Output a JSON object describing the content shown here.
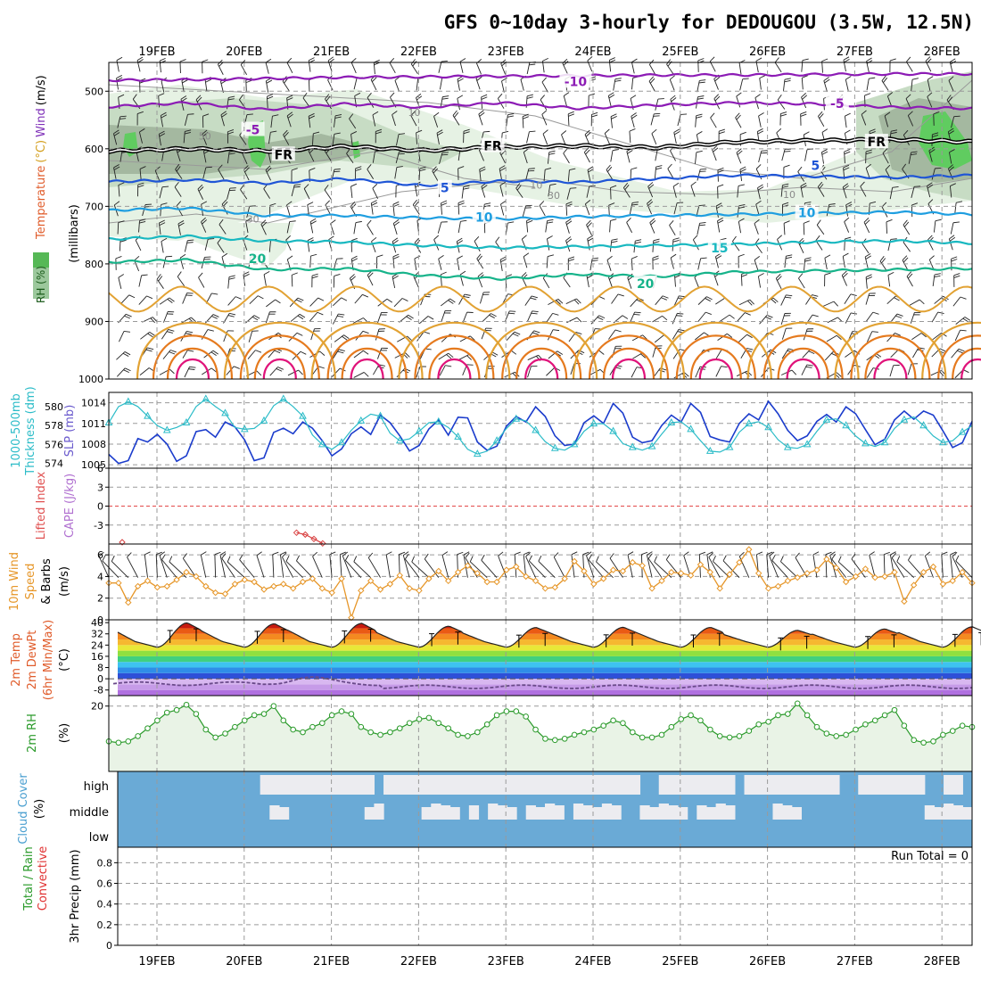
{
  "title": "GFS 0~10day 3-hourly for DEDOUGOU (3.5W, 12.5N)",
  "dates": [
    "19FEB",
    "20FEB",
    "21FEB",
    "22FEB",
    "23FEB",
    "24FEB",
    "25FEB",
    "26FEB",
    "27FEB",
    "28FEB"
  ],
  "colors": {
    "rh_light": "#e6f2e4",
    "rh_mid": "#c7dcc4",
    "rh_dark": "#a4b8a0",
    "rh_green": "#60cc60",
    "temp_purple": "#8c1bb5",
    "temp_blue": "#1f55d6",
    "temp_lblue": "#1e9ee0",
    "temp_cyan": "#18b8c0",
    "temp_teal": "#16b38a",
    "temp_orange1": "#e2a233",
    "temp_orange2": "#e57a1e",
    "temp_magenta": "#e0137a",
    "slp": "#1b3ccc",
    "thickness": "#2cbcc8",
    "wind10": "#e69628",
    "rh2m": "#2a9a2a",
    "rh2m_fill": "#e9f3e6",
    "cloud": "#6aaad6",
    "cloud_clear": "#ececf0"
  },
  "chart_data": [
    {
      "id": "upper_air",
      "type": "contour",
      "ylabel_parts": [
        "RH (%)",
        "Temperature",
        "(°C)",
        "Wind",
        "(m/s)"
      ],
      "yunit": "(millibars)",
      "y_ticks": [
        "500",
        "600",
        "700",
        "800",
        "900",
        "1000"
      ],
      "y_values": [
        500,
        600,
        700,
        800,
        900,
        1000
      ],
      "ylim": [
        450,
        1000
      ],
      "contours": [
        {
          "label": "-10",
          "color_key": "temp_purple",
          "pressure": [
            481,
            480,
            478,
            476,
            475,
            474,
            473,
            472,
            472,
            471,
            470,
            470
          ]
        },
        {
          "label": "-5",
          "color_key": "temp_purple",
          "pressure": [
            527,
            520,
            532,
            522,
            528,
            520,
            530,
            524,
            520,
            522,
            528,
            530
          ]
        },
        {
          "label": "FR",
          "color_key": "freezing",
          "pressure": [
            604,
            600,
            604,
            596,
            603,
            597,
            595,
            598,
            588,
            586,
            584,
            588
          ]
        },
        {
          "label": "5",
          "color_key": "temp_blue",
          "pressure": [
            657,
            654,
            660,
            652,
            664,
            656,
            658,
            652,
            646,
            648,
            650,
            646
          ]
        },
        {
          "label": "10",
          "color_key": "temp_lblue",
          "pressure": [
            707,
            703,
            716,
            716,
            720,
            722,
            718,
            716,
            714,
            712,
            710,
            714
          ]
        },
        {
          "label": "15",
          "color_key": "temp_cyan",
          "pressure": [
            757,
            752,
            760,
            762,
            768,
            772,
            770,
            768,
            766,
            762,
            760,
            764
          ]
        },
        {
          "label": "20",
          "color_key": "temp_teal",
          "pressure": [
            797,
            793,
            810,
            808,
            820,
            826,
            818,
            822,
            814,
            812,
            810,
            808
          ]
        }
      ],
      "contour_labels": [
        {
          "text": "-10",
          "x_day": 4.8,
          "pressure": 483
        },
        {
          "text": "-5",
          "x_day": 1.1,
          "pressure": 567
        },
        {
          "text": "-5",
          "x_day": 7.8,
          "pressure": 521
        },
        {
          "text": "FR",
          "x_day": 1.45,
          "pressure": 610
        },
        {
          "text": "FR",
          "x_day": 3.85,
          "pressure": 595
        },
        {
          "text": "FR",
          "x_day": 8.25,
          "pressure": 588
        },
        {
          "text": "5",
          "x_day": 3.3,
          "pressure": 668
        },
        {
          "text": "5",
          "x_day": 7.55,
          "pressure": 629
        },
        {
          "text": "10",
          "x_day": 3.75,
          "pressure": 719
        },
        {
          "text": "10",
          "x_day": 7.45,
          "pressure": 711
        },
        {
          "text": "15",
          "x_day": 6.45,
          "pressure": 772
        },
        {
          "text": "20",
          "x_day": 1.15,
          "pressure": 791
        },
        {
          "text": "20",
          "x_day": 5.6,
          "pressure": 834
        }
      ],
      "gray_labels": [
        {
          "text": "10",
          "x_day": 2.95,
          "pressure": 537
        },
        {
          "text": "50",
          "x_day": 0.55,
          "pressure": 578
        },
        {
          "text": "30",
          "x_day": 4.55,
          "pressure": 681
        },
        {
          "text": "30",
          "x_day": 1.1,
          "pressure": 722
        },
        {
          "text": "10",
          "x_day": 4.35,
          "pressure": 663
        },
        {
          "text": "10",
          "x_day": 7.25,
          "pressure": 679
        }
      ]
    },
    {
      "id": "slp_thickness",
      "type": "line",
      "ylabel_left": [
        "1000-500mb",
        "Thickness (dm)"
      ],
      "ylabel_right": "SLP (mb)",
      "thickness_ticks": [
        "574",
        "576",
        "578",
        "580"
      ],
      "slp_ticks": [
        "1005",
        "1008",
        "1011",
        "1014"
      ],
      "series": [
        {
          "name": "SLP",
          "unit": "mb",
          "ylim": [
            1004.5,
            1015.5
          ],
          "values": [
            1006.5,
            1005.2,
            1005.6,
            1008.8,
            1008.3,
            1009.4,
            1008.0,
            1005.5,
            1006.3,
            1009.8,
            1010.1,
            1009.0,
            1011.2,
            1010.5,
            1008.6,
            1005.6,
            1006.0,
            1009.7,
            1010.3,
            1009.5,
            1011.2,
            1010.3,
            1008.5,
            1006.3,
            1007.3,
            1009.5,
            1010.5,
            1009.4,
            1012.2,
            1011.1,
            1009.2,
            1007.0,
            1007.8,
            1010.2,
            1011.5,
            1009.3,
            1011.9,
            1011.8,
            1008.3,
            1007.1,
            1007.7,
            1010.6,
            1012.0,
            1011.2,
            1013.4,
            1012.0,
            1009.2,
            1007.8,
            1008.0,
            1011.1,
            1012.1,
            1011.0,
            1013.9,
            1012.5,
            1009.0,
            1008.2,
            1008.5,
            1010.7,
            1012.2,
            1011.2,
            1013.9,
            1012.6,
            1009.1,
            1008.6,
            1008.3,
            1011.0,
            1012.4,
            1011.5,
            1014.2,
            1012.4,
            1010.0,
            1008.5,
            1009.2,
            1011.3,
            1012.3,
            1011.2,
            1013.4,
            1012.4,
            1010.1,
            1007.9,
            1008.7,
            1011.5,
            1012.8,
            1011.6,
            1012.8,
            1012.2,
            1009.9,
            1007.5,
            1008.2,
            1011.3
          ]
        },
        {
          "name": "Thickness",
          "unit": "dm",
          "ylim": [
            573.5,
            581.5
          ],
          "values": [
            578.3,
            580.0,
            580.5,
            580.0,
            579.0,
            578.0,
            577.5,
            577.8,
            578.3,
            580.0,
            580.8,
            580.0,
            579.3,
            577.8,
            577.6,
            577.7,
            578.5,
            580.1,
            580.8,
            580.0,
            579.0,
            577.0,
            576.0,
            575.5,
            576.2,
            577.5,
            578.5,
            579.2,
            579.0,
            577.2,
            576.4,
            576.6,
            577.4,
            578.3,
            578.4,
            577.8,
            576.8,
            575.5,
            575.0,
            575.3,
            576.4,
            577.7,
            578.7,
            578.5,
            577.5,
            576.3,
            575.6,
            575.4,
            576.0,
            577.4,
            578.2,
            578.2,
            577.4,
            576.1,
            575.7,
            575.4,
            575.8,
            577.1,
            578.3,
            578.4,
            577.6,
            576.4,
            575.3,
            575.2,
            575.7,
            577.3,
            578.2,
            578.4,
            577.8,
            576.5,
            575.7,
            575.6,
            576.0,
            577.4,
            578.6,
            578.7,
            578.0,
            576.9,
            576.1,
            575.8,
            576.2,
            577.7,
            578.6,
            578.9,
            578.0,
            576.9,
            576.2,
            576.4,
            577.3,
            578.0
          ]
        }
      ]
    },
    {
      "id": "stability",
      "type": "line",
      "ylabel_left": "Lifted Index",
      "ylabel_right": "CAPE (J/kg)",
      "y_ticks": [
        "-3",
        "0",
        "3",
        "6"
      ],
      "ylim": [
        -6,
        6
      ],
      "series": [
        {
          "name": "Lifted Index",
          "x_day": [
            1.6,
            1.7,
            1.8,
            1.9
          ],
          "values": [
            4.2,
            4.5,
            5.2,
            5.9
          ]
        }
      ]
    },
    {
      "id": "wind10m",
      "type": "line",
      "ylabel": [
        "10m Wind",
        "Speed",
        "& Barbs",
        "(m/s)"
      ],
      "y_ticks": [
        "0",
        "2",
        "4",
        "6"
      ],
      "ylim": [
        0,
        7
      ],
      "series": [
        {
          "name": "10m Wind Speed",
          "values": [
            3.4,
            3.4,
            1.6,
            3.1,
            3.6,
            3.0,
            3.1,
            3.7,
            4.4,
            4.0,
            3.1,
            2.5,
            2.4,
            3.3,
            3.7,
            3.5,
            2.8,
            3.1,
            3.3,
            2.9,
            3.5,
            3.8,
            2.9,
            2.5,
            3.8,
            0.2,
            2.7,
            3.6,
            2.8,
            3.3,
            4.1,
            2.9,
            2.7,
            3.8,
            4.5,
            3.6,
            4.4,
            5.0,
            4.3,
            3.5,
            3.5,
            4.6,
            4.9,
            4.0,
            3.6,
            2.9,
            3.0,
            3.8,
            5.4,
            4.5,
            3.3,
            3.8,
            4.6,
            4.5,
            5.3,
            5.0,
            2.9,
            3.6,
            4.4,
            4.3,
            4.1,
            5.1,
            4.4,
            2.9,
            4.2,
            5.3,
            6.5,
            4.3,
            2.9,
            3.1,
            3.6,
            3.9,
            4.3,
            4.6,
            5.6,
            4.8,
            3.5,
            4.0,
            4.7,
            3.9,
            4.0,
            4.4,
            1.7,
            3.2,
            4.4,
            4.9,
            3.3,
            3.6,
            4.4,
            3.4
          ]
        }
      ]
    },
    {
      "id": "temp2m",
      "type": "area",
      "ylabel": [
        "2m Temp",
        "2m DewPt",
        "(6hr Min/Max)",
        "(°C)"
      ],
      "y_ticks": [
        "40",
        "32",
        "24",
        "16",
        "8",
        "0",
        "-8"
      ],
      "ylim": [
        -12,
        42
      ],
      "temp_max_by_day": [
        39.8,
        39.2,
        39.5,
        37.5,
        36.5,
        36.7,
        36.6,
        34.5,
        35.5,
        37.0
      ],
      "temp_min": 22.5,
      "dewpoint_base": -3.5
    },
    {
      "id": "rh2m",
      "type": "line",
      "ylabel": [
        "2m RH",
        "(%)"
      ],
      "y_ticks": [
        "20"
      ],
      "ylim": [
        -5,
        24
      ],
      "series": [
        {
          "name": "2m RH",
          "values": [
            6.5,
            6.0,
            6.5,
            8.5,
            11.5,
            14.5,
            17.5,
            18.5,
            20.5,
            17.0,
            11.0,
            8.0,
            9.5,
            12.0,
            14.5,
            16.5,
            17.0,
            20.0,
            14.5,
            11.0,
            10.0,
            12.0,
            13.5,
            16.5,
            18.0,
            17.0,
            12.0,
            10.0,
            9.0,
            10.0,
            11.5,
            13.5,
            15.0,
            15.5,
            13.5,
            11.5,
            9.0,
            8.5,
            10.0,
            13.0,
            16.5,
            18.0,
            18.0,
            16.0,
            11.0,
            7.5,
            7.0,
            7.5,
            9.0,
            10.0,
            11.0,
            12.5,
            14.5,
            13.5,
            10.0,
            8.0,
            8.0,
            9.0,
            12.0,
            15.0,
            16.5,
            14.5,
            11.0,
            8.5,
            8.0,
            8.5,
            10.5,
            13.0,
            14.0,
            16.5,
            17.0,
            21.0,
            16.5,
            12.0,
            9.5,
            8.5,
            9.0,
            11.0,
            13.0,
            14.5,
            16.5,
            18.5,
            12.5,
            7.0,
            6.0,
            6.5,
            9.0,
            10.5,
            12.5,
            12.0
          ]
        }
      ]
    },
    {
      "id": "cloud_cover",
      "type": "heatmap",
      "ylabel": [
        "Cloud Cover",
        "(%)"
      ],
      "levels": [
        "high",
        "middle",
        "low"
      ],
      "high_clear": [
        0,
        0,
        0,
        0,
        0,
        0,
        0,
        0,
        0,
        0,
        0,
        0,
        0,
        0,
        0,
        1,
        1,
        1,
        1,
        1,
        1,
        1,
        1,
        1,
        1,
        1,
        1,
        0,
        1,
        1,
        1,
        1,
        1,
        1,
        1,
        1,
        1,
        1,
        1,
        1,
        1,
        1,
        1,
        1,
        1,
        1,
        1,
        1,
        1,
        1,
        1,
        1,
        1,
        1,
        1,
        0,
        0,
        1,
        1,
        1,
        1,
        1,
        1,
        1,
        1,
        0,
        1,
        1,
        1,
        1,
        1,
        1,
        1,
        1,
        1,
        1,
        0,
        0,
        1,
        1,
        1,
        1,
        1,
        1,
        1,
        0,
        0,
        1,
        1,
        0
      ],
      "mid_clear": [
        0,
        0,
        0,
        0,
        0,
        0,
        0,
        0,
        0,
        0,
        0,
        0,
        0,
        0,
        0,
        0,
        1,
        1,
        0,
        0,
        0,
        0,
        0,
        0,
        0,
        0,
        1,
        1,
        0,
        0,
        0,
        0,
        1,
        1,
        1,
        1,
        0,
        1,
        0,
        1,
        1,
        1,
        0,
        1,
        1,
        1,
        1,
        0,
        1,
        1,
        1,
        1,
        1,
        0,
        0,
        1,
        1,
        1,
        1,
        1,
        0,
        1,
        1,
        1,
        1,
        0,
        0,
        0,
        0,
        1,
        1,
        1,
        0,
        0,
        0,
        0,
        0,
        0,
        0,
        0,
        0,
        0,
        0,
        0,
        0,
        1,
        1,
        1,
        1,
        1
      ]
    },
    {
      "id": "precip3hr",
      "type": "bar",
      "ylabel": [
        "3hr Precip (mm)",
        "Total / Rain",
        "Convective"
      ],
      "y_ticks": [
        "0",
        "0.2",
        "0.4",
        "0.6",
        "0.8"
      ],
      "ylim": [
        0,
        0.95
      ],
      "annotation": "Run Total = 0",
      "values": []
    }
  ]
}
